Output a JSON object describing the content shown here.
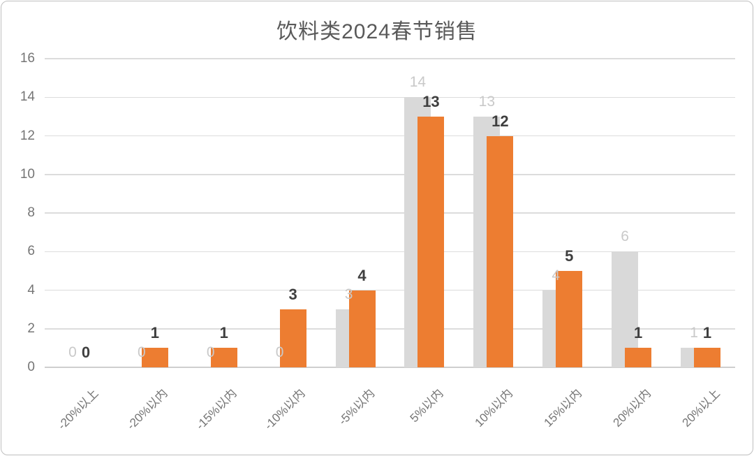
{
  "chart_data": {
    "type": "bar",
    "title": "饮料类2024春节销售",
    "categories": [
      "-20%以上",
      "-20%以内",
      "-15%以内",
      "-10%以内",
      "-5%以内",
      "5%以内",
      "10%以内",
      "15%以内",
      "20%以内",
      "20%以上"
    ],
    "series": [
      {
        "id": "gray",
        "color": "#d9d9d9",
        "label_color": "#c9c9c9",
        "label_bold": false,
        "values": [
          0,
          0,
          0,
          0,
          3,
          14,
          13,
          4,
          6,
          1
        ]
      },
      {
        "id": "orange",
        "color": "#ed7d31",
        "label_color": "#3f3f3f",
        "label_bold": true,
        "values": [
          0,
          1,
          1,
          3,
          4,
          13,
          12,
          5,
          1,
          1
        ]
      }
    ],
    "xlabel": "",
    "ylabel": "",
    "ylim": [
      0,
      16
    ],
    "yticks": [
      0,
      2,
      4,
      6,
      8,
      10,
      12,
      14,
      16
    ],
    "grid": true,
    "legend_position": "none",
    "data_labels": true
  },
  "style": {
    "title_color": "#595959",
    "axis_label_color": "#757575",
    "gridline_color": "#dcdcdc",
    "axis_line_color": "#cfcfcf",
    "card_border_color": "#bfbfbf",
    "background": "#ffffff"
  }
}
